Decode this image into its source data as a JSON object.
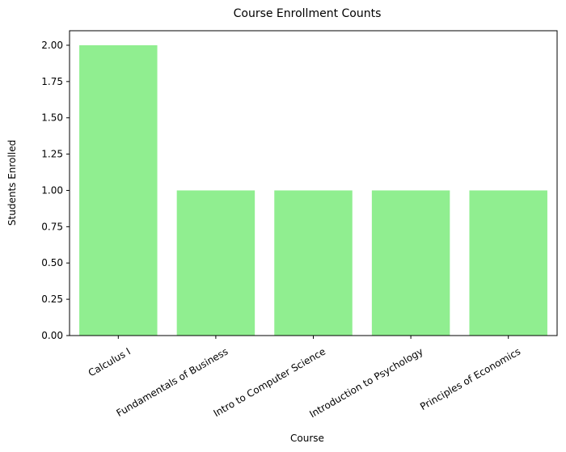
{
  "chart_data": {
    "type": "bar",
    "title": "Course Enrollment Counts",
    "xlabel": "Course",
    "ylabel": "Students Enrolled",
    "categories": [
      "Calculus I",
      "Fundamentals of Business",
      "Intro to Computer Science",
      "Introduction to Psychology",
      "Principles of Economics"
    ],
    "values": [
      2,
      1,
      1,
      1,
      1
    ],
    "ylim": [
      0,
      2.1
    ],
    "yticks": [
      "0.00",
      "0.25",
      "0.50",
      "0.75",
      "1.00",
      "1.25",
      "1.50",
      "1.75",
      "2.00"
    ],
    "bar_color": "#90ee90",
    "grid": false,
    "legend": "none"
  }
}
